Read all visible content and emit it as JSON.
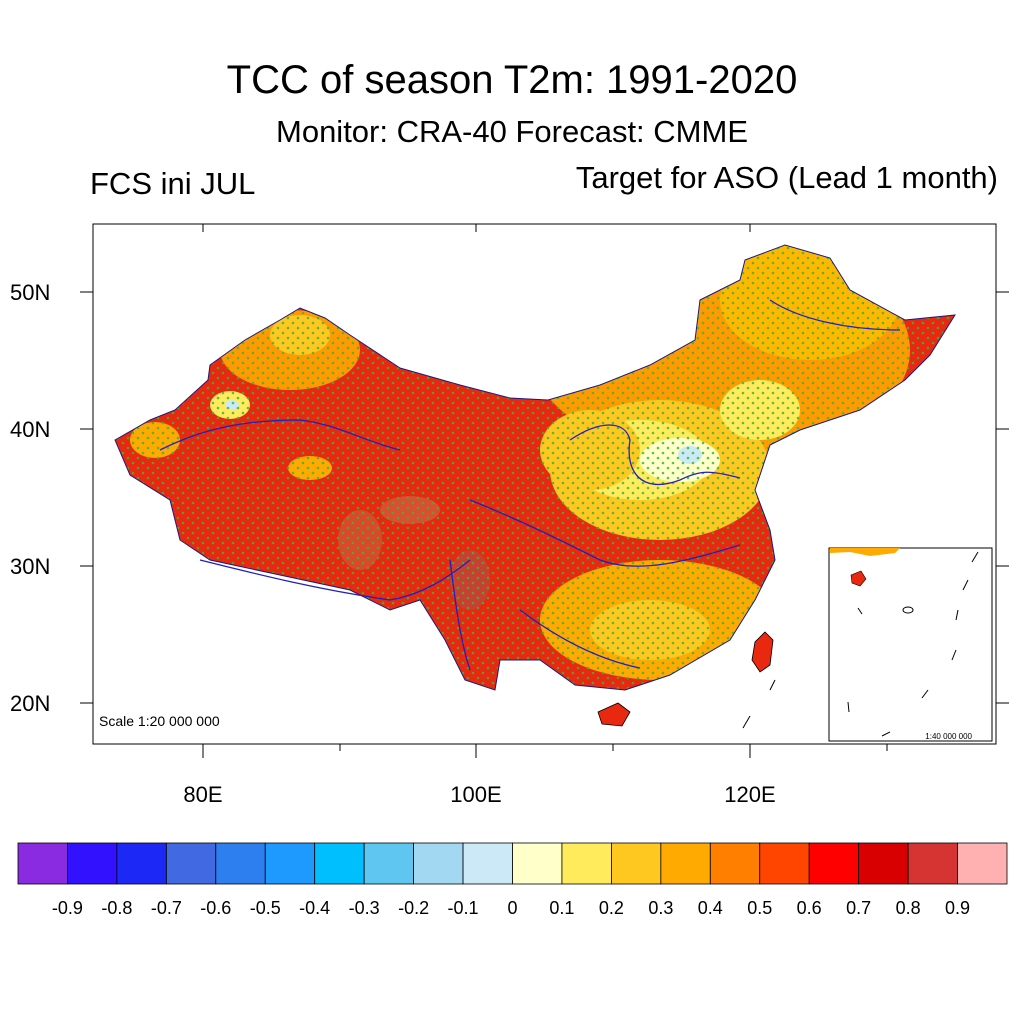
{
  "title": "TCC of season T2m: 1991-2020",
  "subtitle": "Monitor: CRA-40   Forecast: CMME",
  "left_label": "FCS ini JUL",
  "right_label": "Target for ASO (Lead 1 month)",
  "map": {
    "scale_label": "Scale 1:20 000 000",
    "inset_scale_label": "1:40 000 000",
    "lat_labels": [
      "50N",
      "40N",
      "30N",
      "20N"
    ],
    "lon_labels": [
      "80E",
      "100E",
      "120E"
    ]
  },
  "colorbar": {
    "colors": [
      "#8a2be2",
      "#3211ff",
      "#1c28f5",
      "#4169e1",
      "#2d7ff0",
      "#1e9aff",
      "#00bfff",
      "#5fc6f2",
      "#a3d8f2",
      "#cce9f7",
      "#ffffc9",
      "#ffeb5c",
      "#ffc820",
      "#ffaa00",
      "#ff7f00",
      "#ff4500",
      "#ff0000",
      "#d80000",
      "#d63333",
      "#ffb0b0"
    ],
    "labels": [
      "-0.9",
      "-0.8",
      "-0.7",
      "-0.6",
      "-0.5",
      "-0.4",
      "-0.3",
      "-0.2",
      "-0.1",
      "0",
      "0.1",
      "0.2",
      "0.3",
      "0.4",
      "0.5",
      "0.6",
      "0.7",
      "0.8",
      "0.9"
    ]
  }
}
